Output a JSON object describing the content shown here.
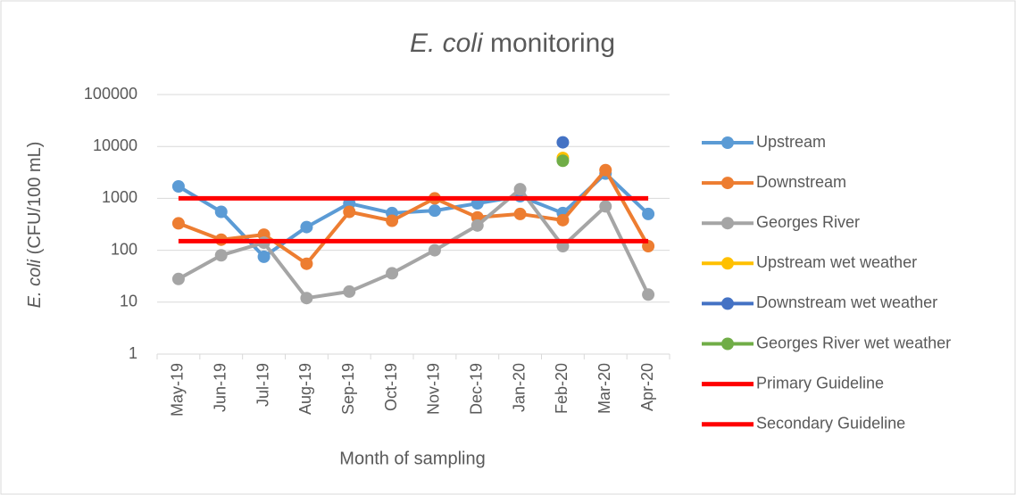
{
  "chart_data": {
    "type": "line",
    "title": "E. coli monitoring",
    "x_label": "Month of sampling",
    "y_label": "E. coli (CFU/100 mL)",
    "categories": [
      "May-19",
      "Jun-19",
      "Jul-19",
      "Aug-19",
      "Sep-19",
      "Oct-19",
      "Nov-19",
      "Dec-19",
      "Jan-20",
      "Feb-20",
      "Mar-20",
      "Apr-20"
    ],
    "yscale": "log",
    "ylim": [
      1,
      100000
    ],
    "yticks": [
      1,
      10,
      100,
      1000,
      10000,
      100000
    ],
    "grid": true,
    "legend": "right",
    "series": [
      {
        "name": "Upstream",
        "color": "#5b9bd5",
        "marker": true,
        "values": [
          1700,
          550,
          75,
          280,
          800,
          520,
          580,
          800,
          1100,
          520,
          3000,
          500
        ]
      },
      {
        "name": "Downstream",
        "color": "#ed7d31",
        "marker": true,
        "values": [
          330,
          160,
          200,
          55,
          550,
          370,
          1000,
          430,
          500,
          380,
          3500,
          120
        ]
      },
      {
        "name": "Georges River",
        "color": "#a5a5a5",
        "marker": true,
        "values": [
          28,
          80,
          140,
          12,
          16,
          36,
          100,
          300,
          1500,
          120,
          700,
          14
        ]
      },
      {
        "name": "Upstream wet weather",
        "color": "#ffc000",
        "marker": true,
        "values": [
          null,
          null,
          null,
          null,
          null,
          null,
          null,
          null,
          null,
          6000,
          null,
          null
        ]
      },
      {
        "name": "Downstream wet weather",
        "color": "#4472c4",
        "marker": true,
        "values": [
          null,
          null,
          null,
          null,
          null,
          null,
          null,
          null,
          null,
          12000,
          null,
          null
        ]
      },
      {
        "name": "Georges River wet weather",
        "color": "#70ad47",
        "marker": true,
        "values": [
          null,
          null,
          null,
          null,
          null,
          null,
          null,
          null,
          null,
          5300,
          null,
          null
        ]
      },
      {
        "name": "Primary Guideline",
        "color": "#ff0000",
        "marker": false,
        "values": [
          1000,
          1000,
          1000,
          1000,
          1000,
          1000,
          1000,
          1000,
          1000,
          1000,
          1000,
          1000
        ]
      },
      {
        "name": "Secondary Guideline",
        "color": "#ff0000",
        "marker": false,
        "values": [
          150,
          150,
          150,
          150,
          150,
          150,
          150,
          150,
          150,
          150,
          150,
          150
        ]
      }
    ]
  }
}
